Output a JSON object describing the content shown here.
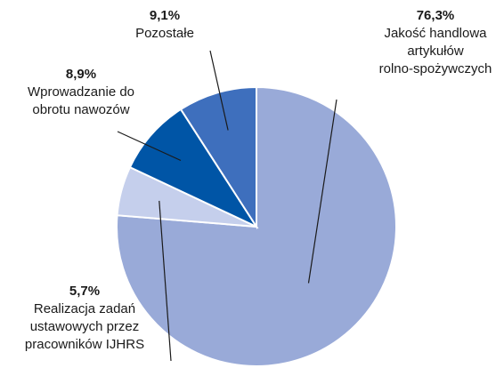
{
  "chart_data": {
    "type": "pie",
    "title": "",
    "slices": [
      {
        "value": 76.3,
        "value_label": "76,3%",
        "label": "Jakość handlowa\nartykułów\nrolno-spożywczych",
        "color": "#99aad8"
      },
      {
        "value": 5.7,
        "value_label": "5,7%",
        "label": "Realizacja zadań\nustawowych przez\npracowników IJHRS",
        "color": "#c5cfec"
      },
      {
        "value": 8.9,
        "value_label": "8,9%",
        "label": "Wprowadzanie do\nobrotu nawozów",
        "color": "#0055a6"
      },
      {
        "value": 9.1,
        "value_label": "9,1%",
        "label": "Pozostałe",
        "color": "#3e6fbd"
      }
    ],
    "start": "12 o'clock",
    "direction": "clockwise",
    "legend": "none"
  }
}
